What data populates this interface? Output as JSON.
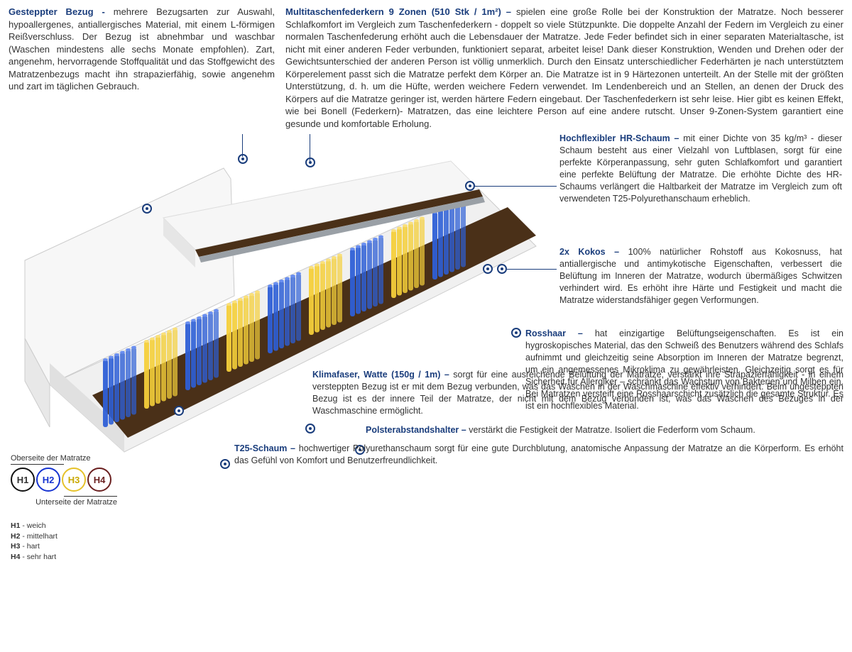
{
  "colors": {
    "heading": "#1a3d7c",
    "body_text": "#333333",
    "spring_blue": "#2e5fd6",
    "spring_yellow": "#f4cf3a",
    "kokos": "#5a3a1a",
    "foam_white": "#f2f2f2",
    "foam_shadow": "#d8d8d8",
    "cover_white": "#fafafa",
    "leader": "#1a3d7c",
    "h1_border": "#111111",
    "h2_border": "#1633d1",
    "h3_border": "#e6c22a",
    "h4_border": "#6a1f1f"
  },
  "top_left": {
    "title": "Gesteppter Bezug - ",
    "body": "mehrere Bezugsarten zur Auswahl, hypoallergenes, antiallergisches Material, mit einem L-förmigen Reißverschluss. Der Bezug ist abnehmbar und waschbar (Waschen mindestens alle sechs Monate empfohlen). Zart, angenehm, hervorragende Stoffqualität und das Stoffgewicht des Matratzenbezugs macht ihn strapazierfähig, sowie angenehm und zart im täglichen Gebrauch."
  },
  "top_right": {
    "title": "Multitaschenfederkern 9 Zonen (510 Stk / 1m²) – ",
    "body": "spielen eine große Rolle bei der Konstruktion der Matratze. Noch besserer Schlafkomfort im Vergleich zum Taschenfederkern - doppelt so viele Stützpunkte. Die doppelte Anzahl der Federn im Vergleich zu einer normalen Taschenfederung erhöht auch die Lebensdauer der Matratze. Jede Feder befindet sich in einer separaten Materialtasche, ist nicht mit einer anderen Feder verbunden, funktioniert separat, arbeitet leise! Dank dieser Konstruktion, Wenden und Drehen oder der Gewichtsunterschied der anderen Person ist völlig unmerklich. Durch den Einsatz unterschiedlicher Federhärten je nach unterstütztem Körperelement passt sich die Matratze perfekt dem Körper an. Die Matratze ist in 9 Härtezonen unterteilt. An der Stelle mit der größten Unterstützung, d. h. um die Hüfte, werden weichere Federn verwendet. Im Lendenbereich und an Stellen, an denen der Druck des Körpers auf die Matratze geringer ist, werden härtere Federn eingebaut. Der Taschenfederkern ist sehr leise. Hier gibt es keinen Effekt, wie bei Bonell (Federkern)- Matratzen, das eine leichtere Person auf eine andere rutscht. Unser 9-Zonen-System garantiert eine gesunde und komfortable Erholung."
  },
  "labels": {
    "hr_schaum": {
      "title": "Hochflexibler HR-Schaum – ",
      "body": "mit einer Dichte von 35 kg/m³ - dieser Schaum besteht aus einer Vielzahl von Luftblasen, sorgt für eine perfekte Körperanpassung, sehr guten Schlafkomfort und garantiert eine perfekte Belüftung der Matratze. Die erhöhte Dichte des HR-Schaums verlängert die Haltbarkeit der Matratze im Vergleich zum oft verwendeten T25-Polyurethanschaum erheblich."
    },
    "kokos": {
      "title": "2x Kokos – ",
      "body": "100% natürlicher Rohstoff aus Kokosnuss, hat antiallergische und antimykotische Eigenschaften, verbessert die Belüftung im Inneren der Matratze, wodurch übermäßiges Schwitzen verhindert wird. Es erhöht ihre Härte und Festigkeit und macht die Matratze widerstandsfähiger gegen Verformungen."
    },
    "rosshaar": {
      "title": "Rosshaar – ",
      "body": "hat einzigartige Belüftungseigenschaften. Es ist ein hygroskopisches Material, das den Schweiß des Benutzers während des Schlafs aufnimmt und gleichzeitig seine Absorption im Inneren der Matratze begrenzt, um ein angemessenes Mikroklima zu gewährleisten. Gleichzeitig sorgt es für Sicherheit für Allergiker – schränkt das Wachstum von Bakterien und Milben ein. Bei Matratzen versteift eine Rosshaarschicht zusätzlich die gesamte Struktur. Es ist ein hochflexibles Material."
    },
    "klimafaser": {
      "title": "Klimafaser, Watte (150g / 1m) – ",
      "body": "sorgt für eine ausreichende Belüftung der Matratze, verstärkt ihre Strapazierfähigkeit - in einem versteppten Bezug ist er mit dem Bezug verbunden, was das Waschen in der Waschmaschine effektiv verhindert. Beim ungesteppten Bezug ist es der innere Teil der Matratze, der nicht mit dem Bezug verbunden ist, was das Waschen des Bezuges in der Waschmaschine ermöglicht."
    },
    "polster": {
      "title": "Polsterabstandshalter – ",
      "body": "verstärkt die Festigkeit der Matratze. Isoliert die Federform vom Schaum."
    },
    "t25": {
      "title": "T25-Schaum – ",
      "body": "hochwertiger Polyurethanschaum sorgt für eine gute Durchblutung, anatomische Anpassung der Matratze an die Körperform. Es erhöht das Gefühl von Komfort und Benutzerfreundlichkeit."
    }
  },
  "legend": {
    "top_label": "Oberseite der Matratze",
    "bottom_label": "Unterseite der Matratze",
    "h": [
      "H1",
      "H2",
      "H3",
      "H4"
    ],
    "desc": [
      {
        "k": "H1",
        "v": " - weich"
      },
      {
        "k": "H2",
        "v": " - mittelhart"
      },
      {
        "k": "H3",
        "v": " - hart"
      },
      {
        "k": "H4",
        "v": " - sehr hart"
      }
    ]
  },
  "mattress": {
    "zones_pattern": [
      "blue",
      "yellow",
      "blue",
      "yellow",
      "blue",
      "yellow",
      "blue",
      "yellow",
      "blue"
    ]
  }
}
